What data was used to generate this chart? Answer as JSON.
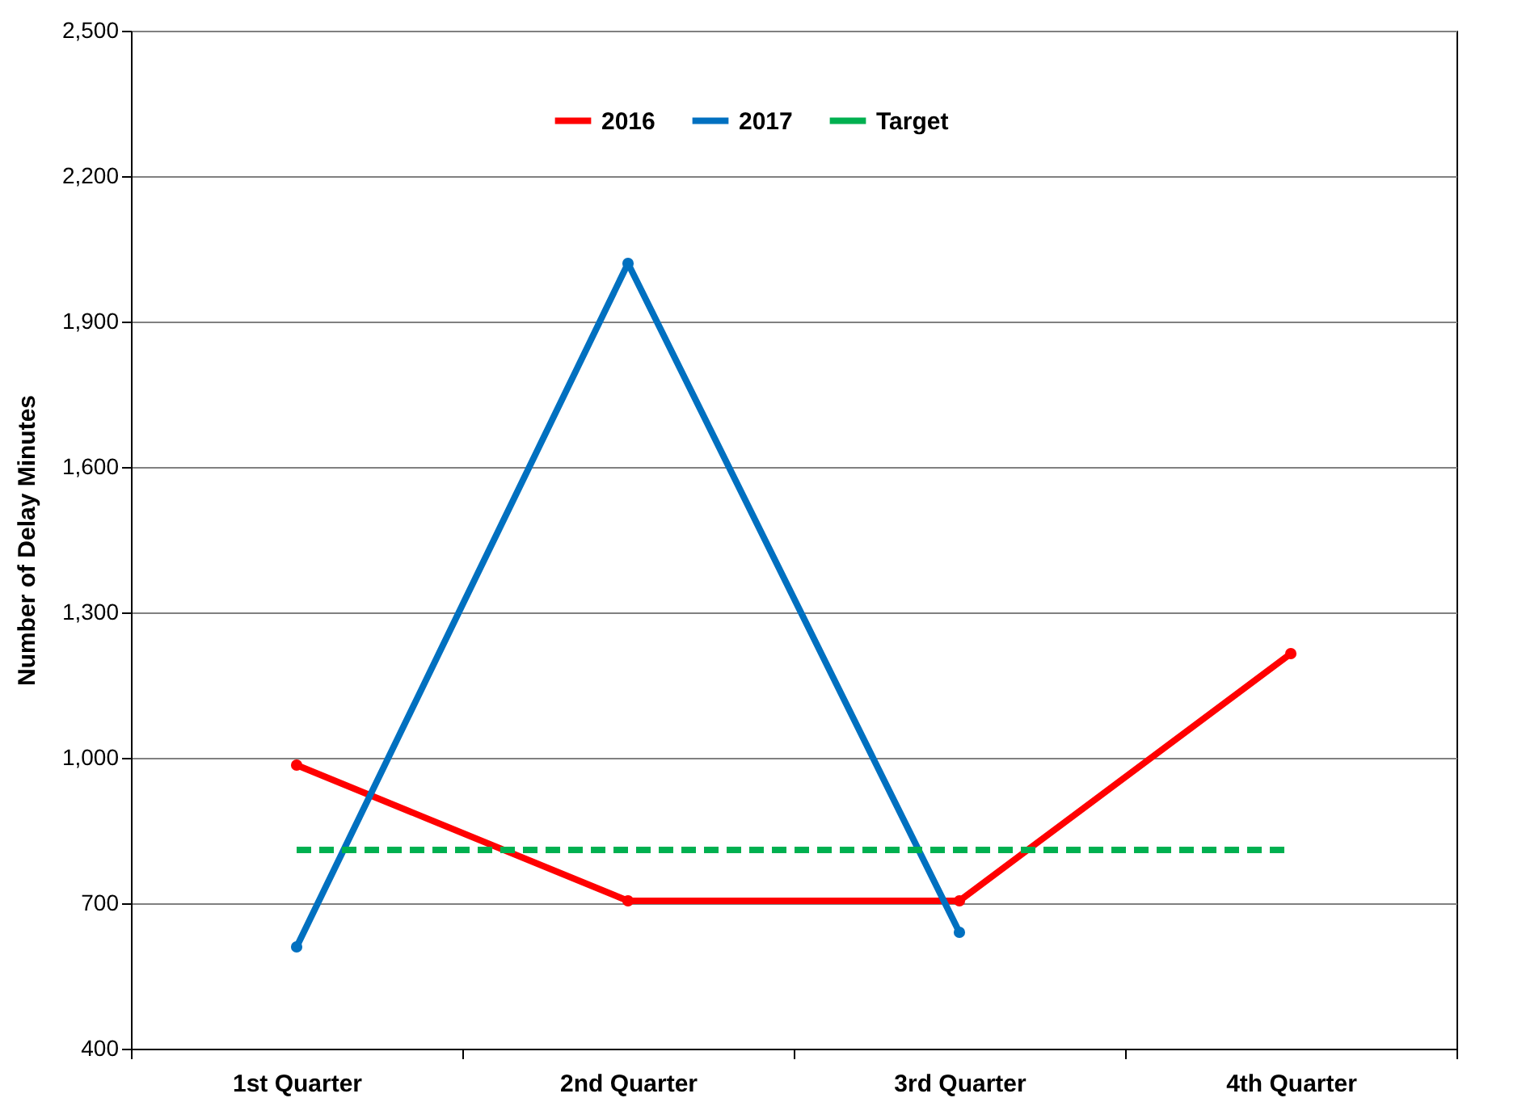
{
  "chart_data": {
    "type": "line",
    "ylabel": "Number of Delay Minutes",
    "categories": [
      "1st Quarter",
      "2nd Quarter",
      "3rd Quarter",
      "4th Quarter"
    ],
    "series": [
      {
        "name": "2016",
        "color": "#ff0000",
        "values": [
          985,
          705,
          705,
          1215
        ]
      },
      {
        "name": "2017",
        "color": "#0070c0",
        "values": [
          610,
          2020,
          640,
          null
        ]
      },
      {
        "name": "Target",
        "color": "#00b050",
        "values": [
          810,
          810,
          810,
          810
        ],
        "line_style": "dashed",
        "marker": "none"
      }
    ],
    "ylim": [
      400,
      2500
    ],
    "yticks": [
      400,
      700,
      {
        "value": 1000,
        "label": "1,000"
      },
      {
        "value": 1300,
        "label": "1,300"
      },
      {
        "value": 1600,
        "label": "1,600"
      },
      {
        "value": 1900,
        "label": "1,900"
      },
      {
        "value": 2200,
        "label": "2,200"
      },
      {
        "value": 2500,
        "label": "2,500"
      }
    ],
    "grid": "y",
    "legend": "top",
    "marker": "circle",
    "line_style": "solid"
  }
}
